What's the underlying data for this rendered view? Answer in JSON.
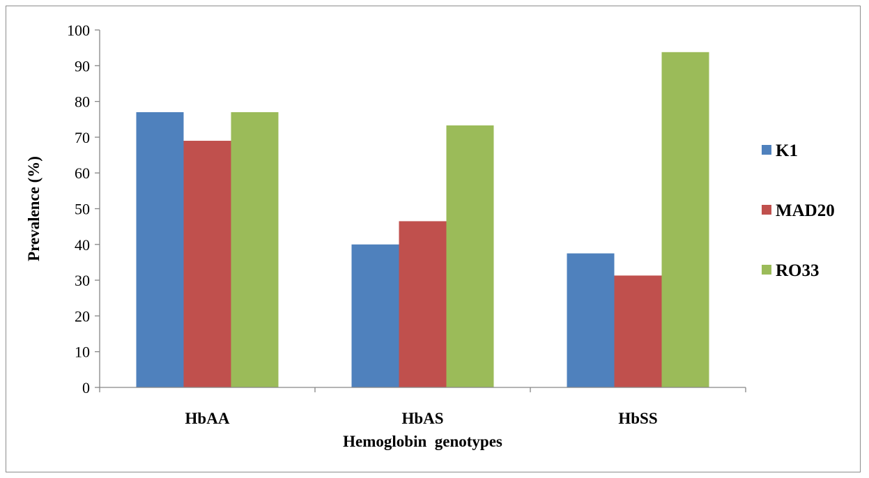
{
  "chart_data": {
    "type": "bar",
    "title": "",
    "xlabel": "Hemoglobin  genotypes",
    "ylabel": "Prevalence (%)",
    "ylim": [
      0,
      100
    ],
    "yticks": [
      0,
      10,
      20,
      30,
      40,
      50,
      60,
      70,
      80,
      90,
      100
    ],
    "categories": [
      "HbAA",
      "HbAS",
      "HbSS"
    ],
    "series": [
      {
        "name": "K1",
        "color": "#4f81bd",
        "values": [
          77,
          40,
          37.5
        ]
      },
      {
        "name": "MAD20",
        "color": "#c0504d",
        "values": [
          69,
          46.5,
          31.3
        ]
      },
      {
        "name": "RO33",
        "color": "#9bbb59",
        "values": [
          77,
          73.3,
          93.8
        ]
      }
    ],
    "grid": false,
    "legend_position": "right"
  }
}
